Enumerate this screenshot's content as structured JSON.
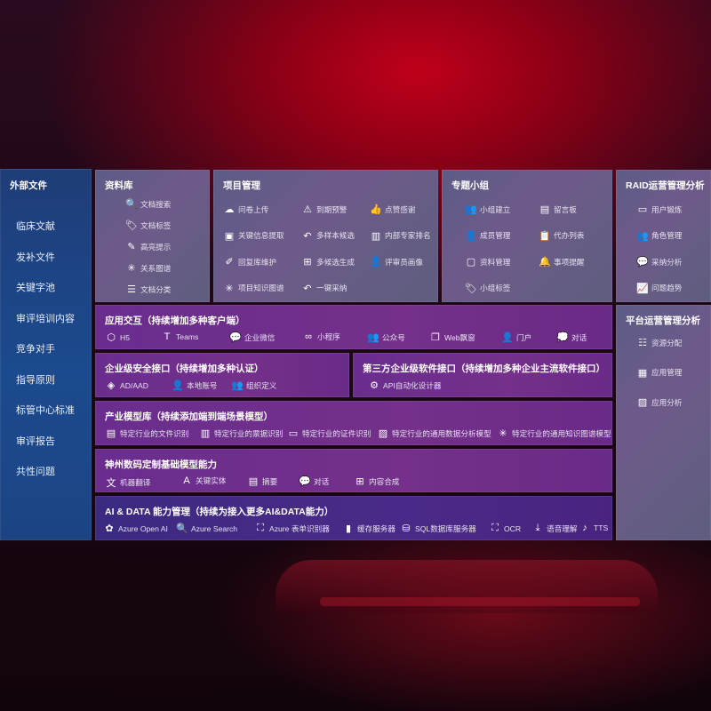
{
  "sidebar": {
    "title": "外部文件",
    "items": [
      "临床文献",
      "发补文件",
      "关键字池",
      "审评培训内容",
      "竞争对手",
      "指导原则",
      "标管中心标准",
      "审评报告",
      "共性问题"
    ]
  },
  "panels": {
    "library": {
      "title": "资料库",
      "items": [
        {
          "label": "文档搜索",
          "icon": "document-search-icon",
          "g": "🔍"
        },
        {
          "label": "文档标签",
          "icon": "tag-icon",
          "g": "🏷"
        },
        {
          "label": "高亮提示",
          "icon": "pen-icon",
          "g": "✎"
        },
        {
          "label": "关系图谱",
          "icon": "graph-icon",
          "g": "✳"
        },
        {
          "label": "文档分类",
          "icon": "document-list-icon",
          "g": "☰"
        }
      ]
    },
    "project": {
      "title": "项目管理",
      "items": [
        {
          "label": "问卷上传",
          "icon": "cloud-upload-icon",
          "g": "☁"
        },
        {
          "label": "到期预警",
          "icon": "alarm-icon",
          "g": "⚠"
        },
        {
          "label": "点赞感谢",
          "icon": "thumbs-up-icon",
          "g": "👍"
        },
        {
          "label": "关键信息提取",
          "icon": "window-icon",
          "g": "▣"
        },
        {
          "label": "多样本候选",
          "icon": "reply-all-icon",
          "g": "↶"
        },
        {
          "label": "内部专家排名",
          "icon": "ranking-icon",
          "g": "▥"
        },
        {
          "label": "回复库维护",
          "icon": "edit-icon",
          "g": "✐"
        },
        {
          "label": "多候选生成",
          "icon": "puzzle-icon",
          "g": "⊞"
        },
        {
          "label": "评审员画像",
          "icon": "user-icon",
          "g": "👤"
        },
        {
          "label": "项目知识图谱",
          "icon": "network-icon",
          "g": "✳"
        },
        {
          "label": "一键采纳",
          "icon": "reply-icon",
          "g": "↶"
        }
      ]
    },
    "group": {
      "title": "专题小组",
      "items": [
        {
          "label": "小组建立",
          "icon": "group-icon",
          "g": "👥"
        },
        {
          "label": "留言板",
          "icon": "bbs-icon",
          "g": "▤"
        },
        {
          "label": "成员管理",
          "icon": "user-add-icon",
          "g": "👤"
        },
        {
          "label": "代办列表",
          "icon": "clipboard-icon",
          "g": "📋"
        },
        {
          "label": "资料管理",
          "icon": "folder-icon",
          "g": "▢"
        },
        {
          "label": "事项提醒",
          "icon": "bell-icon",
          "g": "🔔"
        },
        {
          "label": "小组标签",
          "icon": "tag-icon",
          "g": "🏷"
        }
      ]
    },
    "raid": {
      "title": "RAID运营管理分析",
      "items": [
        {
          "label": "用户锻炼",
          "icon": "id-card-icon",
          "g": "▭"
        },
        {
          "label": "角色管理",
          "icon": "users-icon",
          "g": "👥"
        },
        {
          "label": "采纳分析",
          "icon": "qa-icon",
          "g": "💬"
        },
        {
          "label": "问题趋势",
          "icon": "trend-icon",
          "g": "📈"
        }
      ]
    },
    "platform": {
      "title": "平台运营管理分析",
      "items": [
        {
          "label": "资源分配",
          "icon": "checklist-icon",
          "g": "☷"
        },
        {
          "label": "应用管理",
          "icon": "apps-icon",
          "g": "▦"
        },
        {
          "label": "应用分析",
          "icon": "analysis-icon",
          "g": "▨"
        }
      ]
    },
    "interaction": {
      "title": "应用交互（持续增加多种客户端）",
      "items": [
        {
          "label": "H5",
          "icon": "html5-icon",
          "g": "⬡"
        },
        {
          "label": "Teams",
          "icon": "teams-icon",
          "g": "T"
        },
        {
          "label": "企业微信",
          "icon": "wecom-icon",
          "g": "💬"
        },
        {
          "label": "小程序",
          "icon": "miniprogram-icon",
          "g": "∞"
        },
        {
          "label": "公众号",
          "icon": "official-account-icon",
          "g": "👥"
        },
        {
          "label": "Web飘窗",
          "icon": "web-window-icon",
          "g": "❐"
        },
        {
          "label": "门户",
          "icon": "portal-icon",
          "g": "👤"
        },
        {
          "label": "对话",
          "icon": "chat-users-icon",
          "g": "💭"
        }
      ]
    },
    "security": {
      "title": "企业级安全接口（持续增加多种认证）",
      "items": [
        {
          "label": "AD/AAD",
          "icon": "ad-icon",
          "g": "◈"
        },
        {
          "label": "本地账号",
          "icon": "local-account-icon",
          "g": "👤"
        },
        {
          "label": "组织定义",
          "icon": "organization-icon",
          "g": "👥"
        }
      ]
    },
    "thirdparty": {
      "title": "第三方企业级软件接口（持续增加多种企业主流软件接口）",
      "items": [
        {
          "label": "API自动化设计器",
          "icon": "gear-api-icon",
          "g": "⚙"
        }
      ]
    },
    "industry": {
      "title": "产业模型库（持续添加端到端场景模型）",
      "items": [
        {
          "label": "特定行业的文件识别",
          "icon": "file-scan-icon",
          "g": "▤"
        },
        {
          "label": "特定行业的票据识别",
          "icon": "receipt-icon",
          "g": "▥"
        },
        {
          "label": "特定行业的证件识别",
          "icon": "id-card-icon",
          "g": "▭"
        },
        {
          "label": "特定行业的通用数据分析模型",
          "icon": "image-chart-icon",
          "g": "▨"
        },
        {
          "label": "特定行业的通用知识图谱模型",
          "icon": "network-icon",
          "g": "✳"
        }
      ]
    },
    "base": {
      "title": "神州数码定制基础模型能力",
      "items": [
        {
          "label": "机器翻译",
          "icon": "translate-icon",
          "g": "文"
        },
        {
          "label": "关键实体",
          "icon": "entity-icon",
          "g": "A"
        },
        {
          "label": "摘要",
          "icon": "summary-icon",
          "g": "▤"
        },
        {
          "label": "对话",
          "icon": "chat-icon",
          "g": "💬"
        },
        {
          "label": "内容合成",
          "icon": "puzzle-icon",
          "g": "⊞"
        }
      ]
    },
    "aidata": {
      "title": "AI & DATA 能力管理（持续为接入更多AI&DATA能力）",
      "items": [
        {
          "label": "Azure Open AI",
          "icon": "openai-icon",
          "g": "✿"
        },
        {
          "label": "Azure Search",
          "icon": "search-doc-icon",
          "g": "🔍"
        },
        {
          "label": "Azure 表单识别器",
          "icon": "form-scan-icon",
          "g": "⛶"
        },
        {
          "label": "缓存服务器",
          "icon": "cache-server-icon",
          "g": "▮"
        },
        {
          "label": "SQL数据库服务器",
          "icon": "database-icon",
          "g": "⛁"
        },
        {
          "label": "OCR",
          "icon": "ocr-icon",
          "g": "⛶"
        },
        {
          "label": "语音理解",
          "icon": "speech-icon",
          "g": "⤓"
        },
        {
          "label": "TTS",
          "icon": "tts-icon",
          "g": "♪"
        }
      ]
    }
  }
}
